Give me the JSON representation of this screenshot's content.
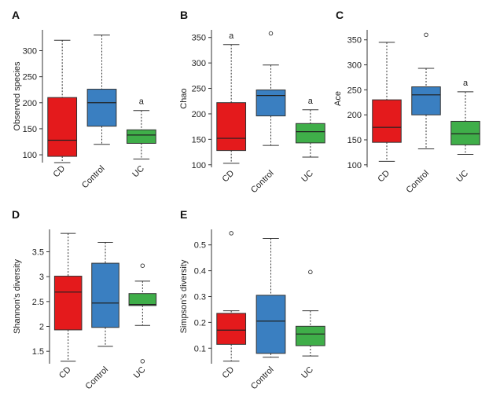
{
  "chart_data": [
    {
      "type": "boxplot",
      "panel": "A",
      "ylabel": "Observed species",
      "ylim": [
        85,
        340
      ],
      "yticks": [
        100,
        150,
        200,
        250,
        300
      ],
      "categories": [
        "CD",
        "Control",
        "UC"
      ],
      "colors": [
        "#e41a1c",
        "#3a7fc1",
        "#3fae49"
      ],
      "boxes": [
        {
          "min": 85,
          "q1": 97,
          "median": 128,
          "q3": 210,
          "max": 320,
          "outliers": []
        },
        {
          "min": 120,
          "q1": 155,
          "median": 200,
          "q3": 226,
          "max": 330,
          "outliers": []
        },
        {
          "min": 92,
          "q1": 122,
          "median": 138,
          "q3": 148,
          "max": 185,
          "outliers": []
        }
      ],
      "annotations": [
        "",
        "",
        "a"
      ]
    },
    {
      "type": "boxplot",
      "panel": "B",
      "ylabel": "Chao",
      "ylim": [
        95,
        365
      ],
      "yticks": [
        100,
        150,
        200,
        250,
        300,
        350
      ],
      "categories": [
        "CD",
        "Control",
        "UC"
      ],
      "colors": [
        "#e41a1c",
        "#3a7fc1",
        "#3fae49"
      ],
      "boxes": [
        {
          "min": 103,
          "q1": 128,
          "median": 152,
          "q3": 222,
          "max": 336,
          "outliers": []
        },
        {
          "min": 138,
          "q1": 196,
          "median": 236,
          "q3": 247,
          "max": 296,
          "outliers": [
            358
          ]
        },
        {
          "min": 115,
          "q1": 143,
          "median": 165,
          "q3": 181,
          "max": 208,
          "outliers": []
        }
      ],
      "annotations": [
        "a",
        "",
        "a"
      ]
    },
    {
      "type": "boxplot",
      "panel": "C",
      "ylabel": "Ace",
      "ylim": [
        95,
        370
      ],
      "yticks": [
        100,
        150,
        200,
        250,
        300,
        350
      ],
      "categories": [
        "CD",
        "Control",
        "UC"
      ],
      "colors": [
        "#e41a1c",
        "#3a7fc1",
        "#3fae49"
      ],
      "boxes": [
        {
          "min": 107,
          "q1": 145,
          "median": 175,
          "q3": 230,
          "max": 345,
          "outliers": []
        },
        {
          "min": 132,
          "q1": 200,
          "median": 240,
          "q3": 256,
          "max": 293,
          "outliers": [
            360
          ]
        },
        {
          "min": 121,
          "q1": 140,
          "median": 162,
          "q3": 187,
          "max": 246,
          "outliers": []
        }
      ],
      "annotations": [
        "",
        "",
        "a"
      ]
    },
    {
      "type": "boxplot",
      "panel": "D",
      "ylabel": "Shannon's diversity",
      "ylim": [
        1.25,
        3.95
      ],
      "yticks": [
        1.5,
        2.0,
        2.5,
        3.0,
        3.5
      ],
      "categories": [
        "CD",
        "Control",
        "UC"
      ],
      "colors": [
        "#e41a1c",
        "#3a7fc1",
        "#3fae49"
      ],
      "boxes": [
        {
          "min": 1.3,
          "q1": 1.93,
          "median": 2.69,
          "q3": 3.01,
          "max": 3.87,
          "outliers": []
        },
        {
          "min": 1.6,
          "q1": 1.98,
          "median": 2.47,
          "q3": 3.27,
          "max": 3.69,
          "outliers": []
        },
        {
          "min": 2.02,
          "q1": 2.42,
          "median": 2.44,
          "q3": 2.66,
          "max": 2.91,
          "outliers": [
            3.22,
            1.3
          ]
        }
      ],
      "annotations": [
        "",
        "",
        ""
      ]
    },
    {
      "type": "boxplot",
      "panel": "E",
      "ylabel": "Simpson's diversity",
      "ylim": [
        0.04,
        0.56
      ],
      "yticks": [
        0.1,
        0.2,
        0.3,
        0.4,
        0.5
      ],
      "categories": [
        "CD",
        "Control",
        "UC"
      ],
      "colors": [
        "#e41a1c",
        "#3a7fc1",
        "#3fae49"
      ],
      "boxes": [
        {
          "min": 0.05,
          "q1": 0.115,
          "median": 0.17,
          "q3": 0.235,
          "max": 0.245,
          "outliers": [
            0.545
          ]
        },
        {
          "min": 0.065,
          "q1": 0.08,
          "median": 0.205,
          "q3": 0.305,
          "max": 0.525,
          "outliers": []
        },
        {
          "min": 0.07,
          "q1": 0.11,
          "median": 0.155,
          "q3": 0.185,
          "max": 0.245,
          "outliers": [
            0.395
          ]
        }
      ],
      "annotations": [
        "",
        "",
        ""
      ]
    }
  ]
}
